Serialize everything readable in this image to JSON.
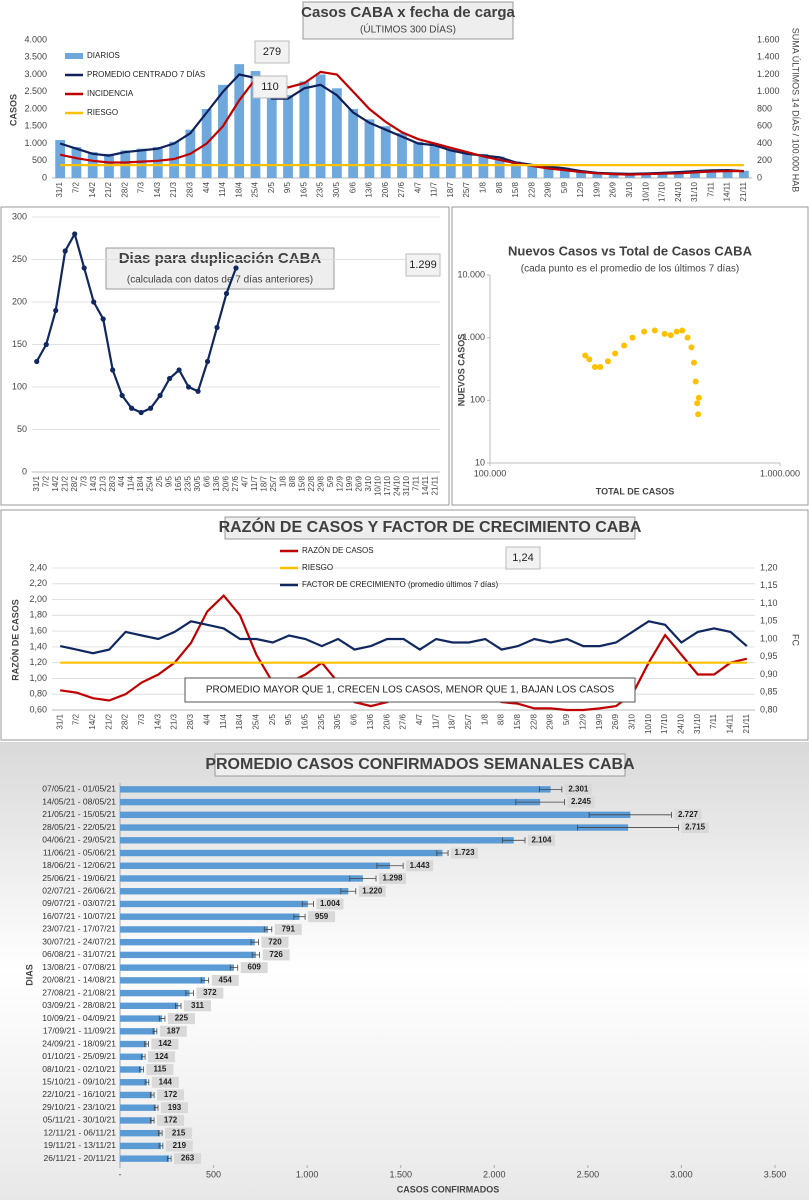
{
  "chart_data": [
    {
      "type": "combo",
      "title": "Casos  CABA x fecha de carga",
      "subtitle": "(ÚLTIMOS 300 DÍAS)",
      "y_label": "CASOS",
      "y2_label": "SUMA ÚLTIMOS 14 DÍAS / 100.000 HAB",
      "annotations": [
        "279",
        "110"
      ],
      "categories": [
        "31/1",
        "7/2",
        "14/2",
        "21/2",
        "28/2",
        "7/3",
        "14/3",
        "21/3",
        "28/3",
        "4/4",
        "11/4",
        "18/4",
        "25/4",
        "2/5",
        "9/5",
        "16/5",
        "23/5",
        "30/5",
        "6/6",
        "13/6",
        "20/6",
        "27/6",
        "4/7",
        "11/7",
        "18/7",
        "25/7",
        "1/8",
        "8/8",
        "15/8",
        "22/8",
        "29/8",
        "5/9",
        "12/9",
        "19/9",
        "26/9",
        "3/10",
        "10/10",
        "17/10",
        "24/10",
        "31/10",
        "7/11",
        "14/11",
        "21/11"
      ],
      "series": [
        {
          "name": "DIARIOS",
          "type": "bar",
          "color": "#6fa8dc",
          "values": [
            1100,
            900,
            750,
            700,
            800,
            850,
            900,
            1050,
            1400,
            2000,
            2700,
            3300,
            3100,
            2500,
            2400,
            2800,
            3000,
            2600,
            2000,
            1700,
            1500,
            1300,
            1050,
            1000,
            850,
            750,
            700,
            620,
            480,
            400,
            350,
            300,
            220,
            160,
            140,
            130,
            140,
            160,
            180,
            210,
            230,
            250,
            210
          ]
        },
        {
          "name": "PROMEDIO CENTRADO 7 DÍAS",
          "type": "line",
          "color": "#10205a",
          "values": [
            1000,
            850,
            700,
            650,
            750,
            800,
            850,
            1000,
            1300,
            1900,
            2500,
            3000,
            2900,
            2300,
            2300,
            2600,
            2700,
            2400,
            1900,
            1600,
            1400,
            1200,
            1000,
            950,
            800,
            700,
            650,
            600,
            450,
            380,
            330,
            280,
            200,
            150,
            130,
            120,
            130,
            150,
            170,
            200,
            220,
            230,
            200
          ]
        },
        {
          "name": "INCIDENCIA",
          "type": "line",
          "axis": "y2",
          "color": "#c00000",
          "values": [
            270,
            230,
            200,
            180,
            180,
            190,
            200,
            220,
            280,
            400,
            600,
            900,
            1150,
            1150,
            1050,
            1100,
            1230,
            1200,
            1000,
            800,
            650,
            530,
            450,
            400,
            350,
            300,
            250,
            210,
            170,
            140,
            110,
            90,
            70,
            55,
            45,
            40,
            45,
            50,
            55,
            65,
            75,
            80,
            80
          ]
        },
        {
          "name": "RIESGO",
          "type": "line",
          "axis": "y2",
          "color": "#ffc000",
          "values": [
            150,
            150,
            150,
            150,
            150,
            150,
            150,
            150,
            150,
            150,
            150,
            150,
            150,
            150,
            150,
            150,
            150,
            150,
            150,
            150,
            150,
            150,
            150,
            150,
            150,
            150,
            150,
            150,
            150,
            150,
            150,
            150,
            150,
            150,
            150,
            150,
            150,
            150,
            150,
            150,
            150,
            150,
            150
          ]
        }
      ],
      "ylim": [
        0,
        4000
      ],
      "yticks": [
        0,
        500,
        {
          "value": 1000,
          "label": "1.000"
        },
        {
          "value": 1500,
          "label": "1.500"
        },
        {
          "value": 2000,
          "label": "2.000"
        },
        {
          "value": 2500,
          "label": "2.500"
        },
        {
          "value": 3000,
          "label": "3.000"
        },
        {
          "value": 3500,
          "label": "3.500"
        },
        {
          "value": 4000,
          "label": "4.000"
        }
      ],
      "y2lim": [
        0,
        1600
      ],
      "y2ticks": [
        0,
        200,
        400,
        600,
        800,
        {
          "value": 1000,
          "label": "1.000"
        },
        {
          "value": 1200,
          "label": "1.200"
        },
        {
          "value": 1400,
          "label": "1.400"
        },
        {
          "value": 1600,
          "label": "1.600"
        }
      ],
      "grid": false,
      "markers": false
    },
    {
      "type": "line",
      "title": "Dias para duplicación CABA",
      "subtitle": "(calculada con datos de 7 días anteriores)",
      "annotations": [
        "1.299"
      ],
      "categories": [
        "31/1",
        "7/2",
        "14/2",
        "21/2",
        "28/2",
        "7/3",
        "14/3",
        "21/3",
        "28/3",
        "4/4",
        "11/4",
        "18/4",
        "25/4",
        "2/5",
        "9/5",
        "16/5",
        "23/5",
        "30/5",
        "6/6",
        "13/6",
        "20/6",
        "27/6",
        "4/7",
        "11/7",
        "18/7",
        "25/7",
        "1/8",
        "8/8",
        "15/8",
        "22/8",
        "29/8",
        "5/9",
        "12/9",
        "19/9",
        "26/9",
        "3/10",
        "10/10",
        "17/10",
        "24/10",
        "31/10",
        "7/11",
        "14/11",
        "21/11"
      ],
      "series": [
        {
          "color": "#10285f",
          "values": [
            130,
            150,
            190,
            260,
            280,
            240,
            200,
            180,
            120,
            90,
            75,
            70,
            75,
            90,
            110,
            120,
            100,
            95,
            130,
            170,
            210,
            240,
            null,
            null,
            null,
            null,
            null,
            null,
            null,
            null,
            null,
            null,
            null,
            null,
            null,
            null,
            null,
            null,
            null,
            null,
            null,
            null,
            null
          ]
        }
      ],
      "ylim": [
        0,
        300
      ],
      "yticks": [
        0,
        50,
        100,
        150,
        200,
        250,
        300
      ],
      "grid": true,
      "markers": true
    },
    {
      "type": "scatter",
      "title": "Nuevos Casos vs Total de Casos CABA",
      "subtitle": "(cada punto es el promedio de los últimos 7 días)",
      "x_label": "TOTAL DE CASOS",
      "y_label": "NUEVOS CASOS",
      "color": "#ffc000",
      "log_x": true,
      "log_y": true,
      "x": [
        213000,
        220000,
        230000,
        240000,
        255000,
        270000,
        290000,
        310000,
        340000,
        370000,
        400000,
        420000,
        440000,
        460000,
        480000,
        495000,
        505000,
        512000,
        518000,
        522000,
        525000
      ],
      "y": [
        520,
        450,
        340,
        340,
        420,
        560,
        750,
        1000,
        1250,
        1300,
        1150,
        1100,
        1250,
        1300,
        1000,
        700,
        400,
        200,
        90,
        60,
        110
      ],
      "xlim": [
        100000,
        1000000
      ],
      "xticks": [
        {
          "value": 100000,
          "label": "100.000"
        },
        {
          "value": 1000000,
          "label": "1.000.000"
        }
      ],
      "ylim": [
        10,
        10000
      ],
      "yticks": [
        10,
        100,
        {
          "value": 1000,
          "label": "1.000"
        },
        {
          "value": 10000,
          "label": "10.000"
        }
      ]
    },
    {
      "type": "combo",
      "title": "RAZÓN DE CASOS Y FACTOR DE CRECIMIENTO CABA",
      "y_label": "RAZÓN DE CASOS",
      "y2_label": "FC",
      "annotations": [
        "1,24"
      ],
      "note": "PROMEDIO MAYOR QUE 1, CRECEN LOS CASOS, MENOR QUE 1, BAJAN LOS CASOS",
      "categories": [
        "31/1",
        "7/2",
        "14/2",
        "21/2",
        "28/2",
        "7/3",
        "14/3",
        "21/3",
        "28/3",
        "4/4",
        "11/4",
        "18/4",
        "25/4",
        "2/5",
        "9/5",
        "16/5",
        "23/5",
        "30/5",
        "6/6",
        "13/6",
        "20/6",
        "27/6",
        "4/7",
        "11/7",
        "18/7",
        "25/7",
        "1/8",
        "8/8",
        "15/8",
        "22/8",
        "29/8",
        "5/9",
        "12/9",
        "19/9",
        "26/9",
        "3/10",
        "10/10",
        "17/10",
        "24/10",
        "31/10",
        "7/11",
        "14/11",
        "21/11"
      ],
      "series": [
        {
          "name": "RAZÓN DE CASOS",
          "type": "line",
          "color": "#c00000",
          "values": [
            0.85,
            0.82,
            0.75,
            0.72,
            0.8,
            0.95,
            1.05,
            1.2,
            1.45,
            1.85,
            2.05,
            1.8,
            1.3,
            0.95,
            0.95,
            1.05,
            1.2,
            0.95,
            0.7,
            0.65,
            0.7,
            0.8,
            0.8,
            0.78,
            0.78,
            0.78,
            0.78,
            0.7,
            0.68,
            0.62,
            0.62,
            0.6,
            0.6,
            0.62,
            0.65,
            0.8,
            1.2,
            1.55,
            1.3,
            1.05,
            1.05,
            1.2,
            1.25
          ]
        },
        {
          "name": "RIESGO",
          "type": "line",
          "color": "#ffc000",
          "values": [
            1.2,
            1.2,
            1.2,
            1.2,
            1.2,
            1.2,
            1.2,
            1.2,
            1.2,
            1.2,
            1.2,
            1.2,
            1.2,
            1.2,
            1.2,
            1.2,
            1.2,
            1.2,
            1.2,
            1.2,
            1.2,
            1.2,
            1.2,
            1.2,
            1.2,
            1.2,
            1.2,
            1.2,
            1.2,
            1.2,
            1.2,
            1.2,
            1.2,
            1.2,
            1.2,
            1.2,
            1.2,
            1.2,
            1.2,
            1.2,
            1.2,
            1.2,
            1.2
          ]
        },
        {
          "name": "FACTOR DE CRECIMIENTO (promedio últimos 7 días)",
          "type": "line",
          "axis": "y2",
          "color": "#10285f",
          "values": [
            0.98,
            0.97,
            0.96,
            0.97,
            1.02,
            1.01,
            1.0,
            1.02,
            1.05,
            1.04,
            1.03,
            1.0,
            1.0,
            0.99,
            1.01,
            1.0,
            0.98,
            1.0,
            0.97,
            0.98,
            1.0,
            1.0,
            0.97,
            1.0,
            0.99,
            0.99,
            1.0,
            0.97,
            0.98,
            1.0,
            0.99,
            1.0,
            0.98,
            0.98,
            0.99,
            1.02,
            1.05,
            1.04,
            0.99,
            1.02,
            1.03,
            1.02,
            0.98
          ]
        }
      ],
      "ylim": [
        0.6,
        2.4
      ],
      "yticks": [
        {
          "value": 0.6,
          "label": "0,60"
        },
        {
          "value": 0.8,
          "label": "0,80"
        },
        {
          "value": 1.0,
          "label": "1,00"
        },
        {
          "value": 1.2,
          "label": "1,20"
        },
        {
          "value": 1.4,
          "label": "1,40"
        },
        {
          "value": 1.6,
          "label": "1,60"
        },
        {
          "value": 1.8,
          "label": "1,80"
        },
        {
          "value": 2.0,
          "label": "2,00"
        },
        {
          "value": 2.2,
          "label": "2,20"
        },
        {
          "value": 2.4,
          "label": "2,40"
        }
      ],
      "y2lim": [
        0.8,
        1.2
      ],
      "y2ticks": [
        {
          "value": 0.8,
          "label": "0,80"
        },
        {
          "value": 0.85,
          "label": "0,85"
        },
        {
          "value": 0.9,
          "label": "0,90"
        },
        {
          "value": 0.95,
          "label": "0,95"
        },
        {
          "value": 1.0,
          "label": "1,00"
        },
        {
          "value": 1.05,
          "label": "1,05"
        },
        {
          "value": 1.1,
          "label": "1,10"
        },
        {
          "value": 1.15,
          "label": "1,15"
        },
        {
          "value": 1.2,
          "label": "1,20"
        }
      ],
      "grid": true,
      "markers": false
    },
    {
      "type": "hbar",
      "title": "PROMEDIO CASOS CONFIRMADOS SEMANALES CABA",
      "x_label": "CASOS CONFIRMADOS",
      "y_label": "DIAS",
      "color": "#5b9bd5",
      "categories": [
        "07/05/21 - 01/05/21",
        "14/05/21 - 08/05/21",
        "21/05/21 - 15/05/21",
        "28/05/21 - 22/05/21",
        "04/06/21 - 29/05/21",
        "11/06/21 - 05/06/21",
        "18/06/21 - 12/06/21",
        "25/06/21 - 19/06/21",
        "02/07/21 - 26/06/21",
        "09/07/21 - 03/07/21",
        "16/07/21 - 10/07/21",
        "23/07/21 - 17/07/21",
        "30/07/21 - 24/07/21",
        "06/08/21 - 31/07/21",
        "13/08/21 - 07/08/21",
        "20/08/21 - 14/08/21",
        "27/08/21 - 21/08/21",
        "03/09/21 - 28/08/21",
        "10/09/21 - 04/09/21",
        "17/09/21 - 11/09/21",
        "24/09/21 - 18/09/21",
        "01/10/21 - 25/09/21",
        "08/10/21 - 02/10/21",
        "15/10/21 - 09/10/21",
        "22/10/21 - 16/10/21",
        "29/10/21 - 23/10/21",
        "05/11/21 - 30/10/21",
        "12/11/21 - 06/11/21",
        "19/11/21 - 13/11/21",
        "26/11/21 - 20/11/21"
      ],
      "values": [
        2301,
        2245,
        2727,
        2715,
        2104,
        1723,
        1443,
        1298,
        1220,
        1004,
        959,
        791,
        720,
        726,
        609,
        454,
        372,
        311,
        225,
        187,
        142,
        124,
        115,
        144,
        172,
        193,
        172,
        215,
        219,
        263
      ],
      "value_labels": [
        "2.301",
        "2.245",
        "2.727",
        "2.715",
        "2.104",
        "1.723",
        "1.443",
        "1.298",
        "1.220",
        "1.004",
        "959",
        "791",
        "720",
        "726",
        "609",
        "454",
        "372",
        "311",
        "225",
        "187",
        "142",
        "124",
        "115",
        "144",
        "172",
        "193",
        "172",
        "215",
        "219",
        "263"
      ],
      "errors": [
        60,
        130,
        220,
        270,
        60,
        30,
        70,
        70,
        40,
        30,
        30,
        20,
        20,
        20,
        20,
        20,
        20,
        15,
        15,
        10,
        10,
        10,
        10,
        10,
        10,
        10,
        10,
        10,
        10,
        10
      ],
      "xlim": [
        0,
        3500
      ],
      "xticks": [
        {
          "value": 0,
          "label": "-"
        },
        500,
        {
          "value": 1000,
          "label": "1.000"
        },
        {
          "value": 1500,
          "label": "1.500"
        },
        {
          "value": 2000,
          "label": "2.000"
        },
        {
          "value": 2500,
          "label": "2.500"
        },
        {
          "value": 3000,
          "label": "3.000"
        },
        {
          "value": 3500,
          "label": "3.500"
        }
      ]
    }
  ]
}
